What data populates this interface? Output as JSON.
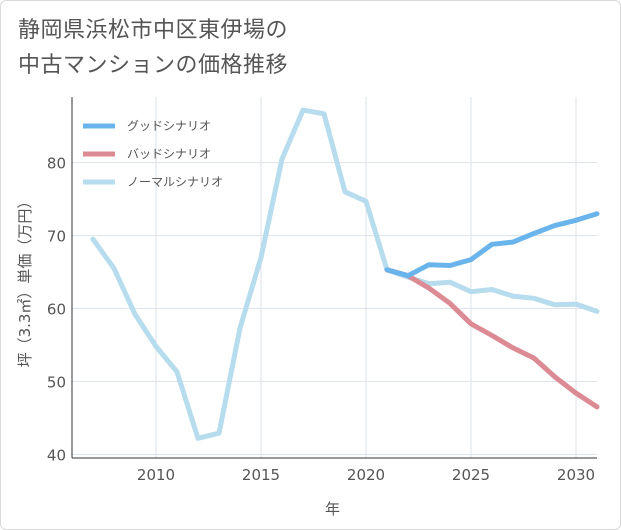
{
  "title_line1": "静岡県浜松市中区東伊場の",
  "title_line2": "中古マンションの価格推移",
  "chart_data": {
    "type": "line",
    "title": "静岡県浜松市中区東伊場の中古マンションの価格推移",
    "xlabel": "年",
    "ylabel": "坪（3.3㎡）単価（万円）",
    "xlim": [
      2006,
      2031
    ],
    "ylim": [
      39.5,
      89
    ],
    "xticks": [
      2010,
      2015,
      2020,
      2025,
      2030
    ],
    "yticks": [
      40,
      50,
      60,
      70,
      80
    ],
    "grid": true,
    "legend_position": "top-left",
    "series": [
      {
        "name": "グッドシナリオ",
        "color": "#6ab4ec",
        "x": [
          2021,
          2022,
          2023,
          2024,
          2025,
          2026,
          2027,
          2028,
          2029,
          2030,
          2031
        ],
        "values": [
          65.3,
          64.5,
          66.0,
          65.9,
          66.7,
          68.8,
          69.1,
          70.3,
          71.4,
          72.1,
          73.0
        ]
      },
      {
        "name": "バッドシナリオ",
        "color": "#dc8a93",
        "x": [
          2021,
          2022,
          2023,
          2024,
          2025,
          2026,
          2027,
          2028,
          2029,
          2030,
          2031
        ],
        "values": [
          65.3,
          64.5,
          62.8,
          60.7,
          57.9,
          56.3,
          54.6,
          53.2,
          50.6,
          48.4,
          46.5
        ]
      },
      {
        "name": "ノーマルシナリオ",
        "color": "#b6dcee",
        "x": [
          2007,
          2008,
          2009,
          2010,
          2011,
          2012,
          2013,
          2014,
          2015,
          2016,
          2017,
          2018,
          2019,
          2020,
          2021,
          2022,
          2023,
          2024,
          2025,
          2026,
          2027,
          2028,
          2029,
          2030,
          2031
        ],
        "values": [
          69.5,
          65.5,
          59.2,
          54.8,
          51.3,
          42.2,
          42.9,
          57.3,
          67.0,
          80.5,
          87.2,
          86.7,
          76.0,
          74.7,
          65.3,
          64.3,
          63.4,
          63.6,
          62.3,
          62.6,
          61.7,
          61.4,
          60.5,
          60.6,
          59.6
        ]
      }
    ]
  }
}
